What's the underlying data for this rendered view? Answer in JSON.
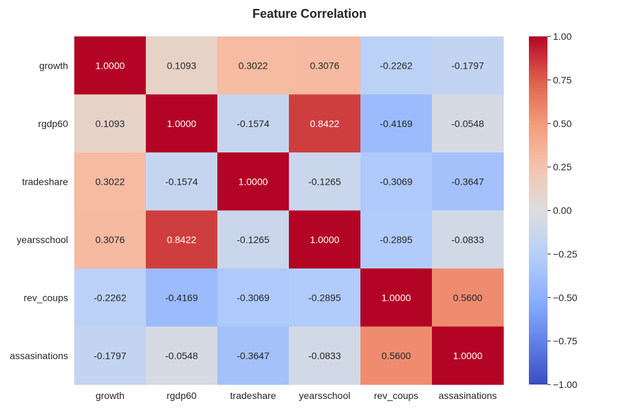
{
  "chart_data": {
    "type": "heatmap",
    "title": "Feature Correlation",
    "xlabel": "",
    "ylabel": "",
    "x_categories": [
      "growth",
      "rgdp60",
      "tradeshare",
      "yearsschool",
      "rev_coups",
      "assasinations"
    ],
    "y_categories": [
      "growth",
      "rgdp60",
      "tradeshare",
      "yearsschool",
      "rev_coups",
      "assasinations"
    ],
    "values": [
      [
        1.0,
        0.1093,
        0.3022,
        0.3076,
        -0.2262,
        -0.1797
      ],
      [
        0.1093,
        1.0,
        -0.1574,
        0.8422,
        -0.4169,
        -0.0548
      ],
      [
        0.3022,
        -0.1574,
        1.0,
        -0.1265,
        -0.3069,
        -0.3647
      ],
      [
        0.3076,
        0.8422,
        -0.1265,
        1.0,
        -0.2895,
        -0.0833
      ],
      [
        -0.2262,
        -0.4169,
        -0.3069,
        -0.2895,
        1.0,
        0.56
      ],
      [
        -0.1797,
        -0.0548,
        -0.3647,
        -0.0833,
        0.56,
        1.0
      ]
    ],
    "value_format_decimals": 4,
    "colormap": "coolwarm",
    "vmin": -1.0,
    "vmax": 1.0,
    "colorbar_ticks": [
      1.0,
      0.75,
      0.5,
      0.25,
      0.0,
      -0.25,
      -0.5,
      -0.75,
      -1.0
    ],
    "colorbar_tick_labels": [
      "1.00",
      "0.75",
      "0.50",
      "0.25",
      "0.00",
      "−0.25",
      "−0.50",
      "−0.75",
      "−1.00"
    ],
    "colorbar_placement": "right",
    "grid": false
  }
}
